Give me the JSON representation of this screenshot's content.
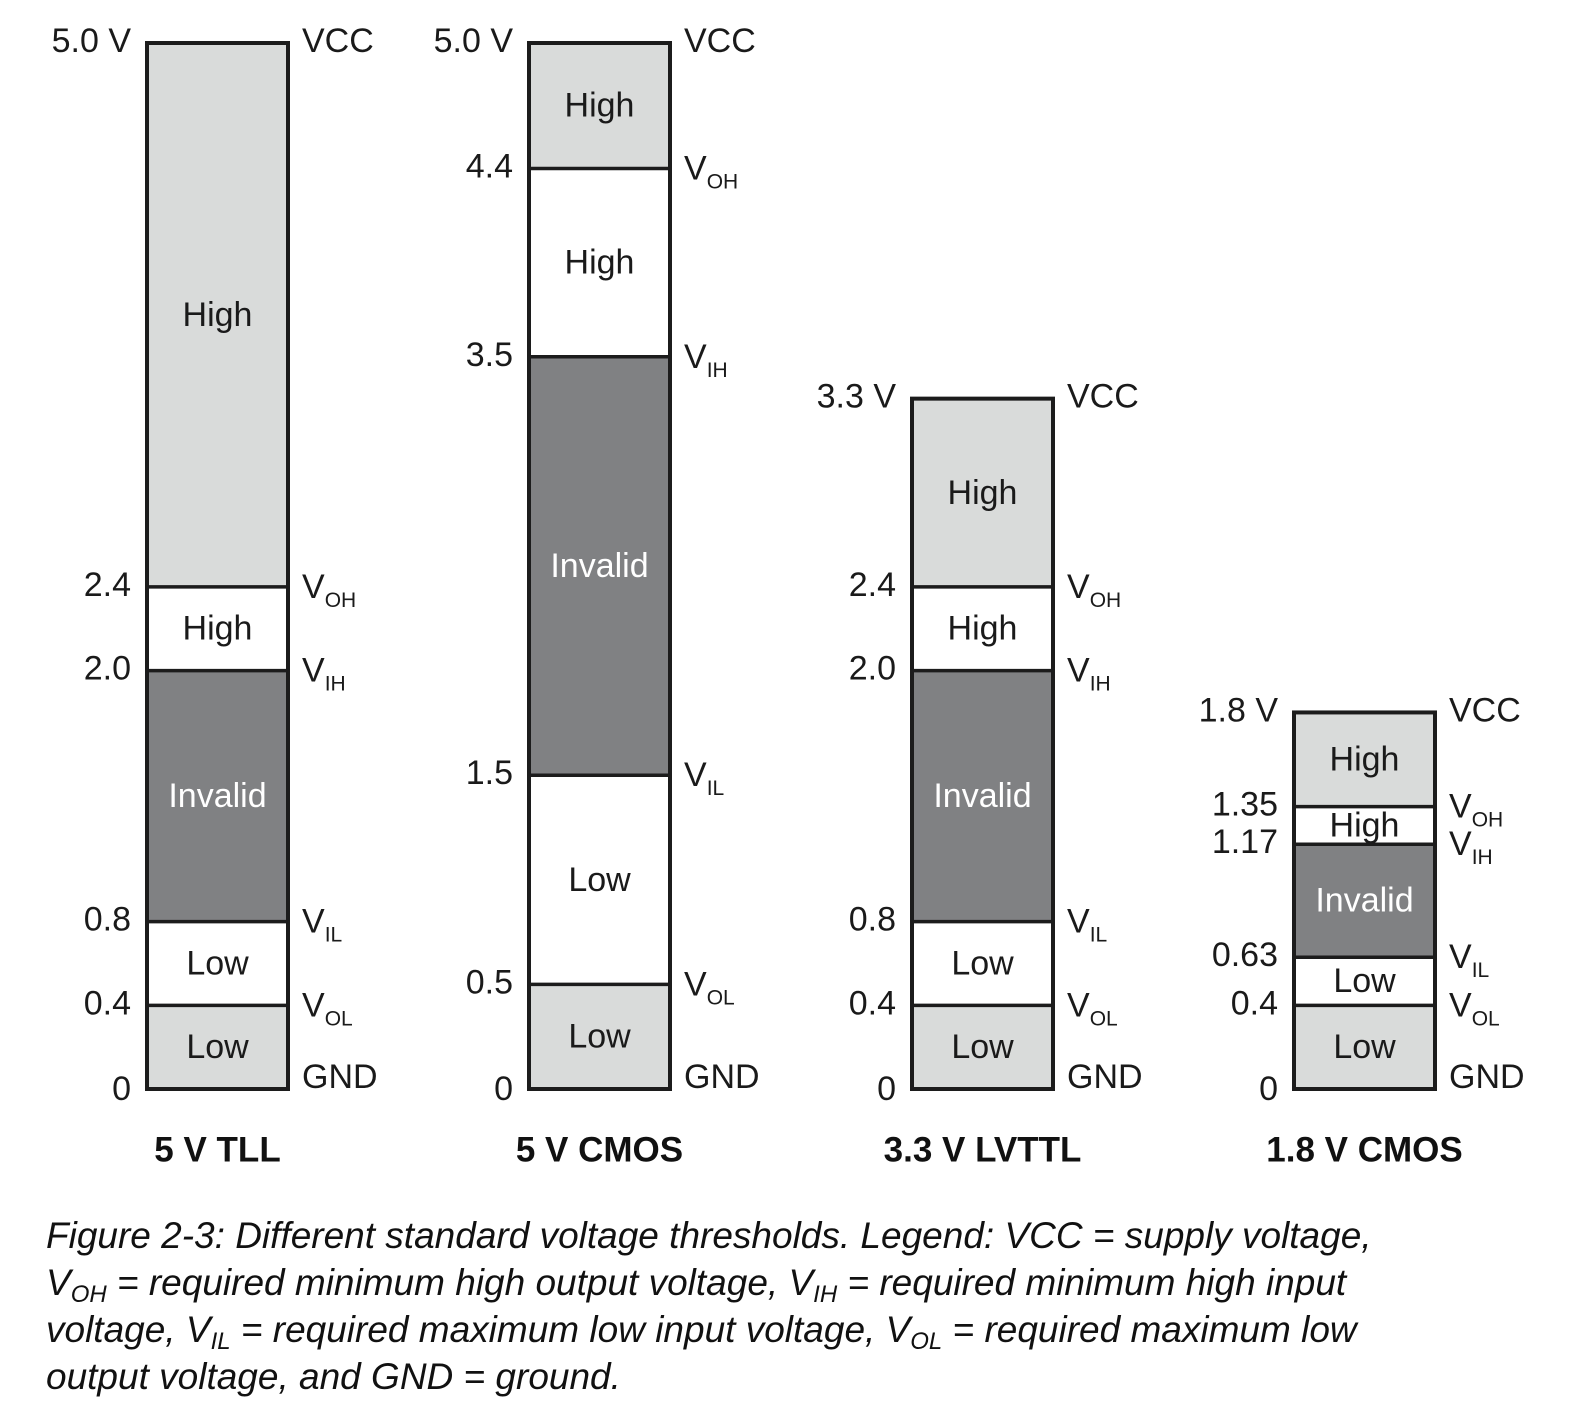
{
  "colors": {
    "high_output": "#d9dbda",
    "input_band": "#ffffff",
    "invalid": "#808183",
    "low_output": "#d9dbda",
    "stroke": "#1c1c1c"
  },
  "standards": [
    {
      "name": "5 V TLL",
      "top_label": "5.0 V",
      "thresholds": [
        {
          "value": 2.4,
          "label": "2.4",
          "sym": "V",
          "sub": "OH"
        },
        {
          "value": 2.0,
          "label": "2.0",
          "sym": "V",
          "sub": "IH"
        },
        {
          "value": 0.8,
          "label": "0.8",
          "sym": "V",
          "sub": "IL"
        },
        {
          "value": 0.4,
          "label": "0.4",
          "sym": "V",
          "sub": "OL"
        }
      ],
      "segments": [
        {
          "from": 2.4,
          "to": 5.0,
          "label": "High",
          "kind": "high_output"
        },
        {
          "from": 2.0,
          "to": 2.4,
          "label": "High",
          "kind": "input_band"
        },
        {
          "from": 0.8,
          "to": 2.0,
          "label": "Invalid",
          "kind": "invalid"
        },
        {
          "from": 0.4,
          "to": 0.8,
          "label": "Low",
          "kind": "input_band"
        },
        {
          "from": 0.0,
          "to": 0.4,
          "label": "Low",
          "kind": "low_output"
        }
      ]
    },
    {
      "name": "5 V CMOS",
      "top_label": "5.0 V",
      "thresholds": [
        {
          "value": 4.4,
          "label": "4.4",
          "sym": "V",
          "sub": "OH"
        },
        {
          "value": 3.5,
          "label": "3.5",
          "sym": "V",
          "sub": "IH"
        },
        {
          "value": 1.5,
          "label": "1.5",
          "sym": "V",
          "sub": "IL"
        },
        {
          "value": 0.5,
          "label": "0.5",
          "sym": "V",
          "sub": "OL"
        }
      ],
      "segments": [
        {
          "from": 4.4,
          "to": 5.0,
          "label": "High",
          "kind": "high_output"
        },
        {
          "from": 3.5,
          "to": 4.4,
          "label": "High",
          "kind": "input_band"
        },
        {
          "from": 1.5,
          "to": 3.5,
          "label": "Invalid",
          "kind": "invalid"
        },
        {
          "from": 0.5,
          "to": 1.5,
          "label": "Low",
          "kind": "input_band"
        },
        {
          "from": 0.0,
          "to": 0.5,
          "label": "Low",
          "kind": "low_output"
        }
      ]
    },
    {
      "name": "3.3 V LVTTL",
      "top_label": "3.3 V",
      "thresholds": [
        {
          "value": 2.4,
          "label": "2.4",
          "sym": "V",
          "sub": "OH"
        },
        {
          "value": 2.0,
          "label": "2.0",
          "sym": "V",
          "sub": "IH"
        },
        {
          "value": 0.8,
          "label": "0.8",
          "sym": "V",
          "sub": "IL"
        },
        {
          "value": 0.4,
          "label": "0.4",
          "sym": "V",
          "sub": "OL"
        }
      ],
      "segments": [
        {
          "from": 2.4,
          "to": 3.3,
          "label": "High",
          "kind": "high_output"
        },
        {
          "from": 2.0,
          "to": 2.4,
          "label": "High",
          "kind": "input_band"
        },
        {
          "from": 0.8,
          "to": 2.0,
          "label": "Invalid",
          "kind": "invalid"
        },
        {
          "from": 0.4,
          "to": 0.8,
          "label": "Low",
          "kind": "input_band"
        },
        {
          "from": 0.0,
          "to": 0.4,
          "label": "Low",
          "kind": "low_output"
        }
      ]
    },
    {
      "name": "1.8 V CMOS",
      "top_label": "1.8 V",
      "thresholds": [
        {
          "value": 1.35,
          "label": "1.35",
          "sym": "V",
          "sub": "OH"
        },
        {
          "value": 1.17,
          "label": "1.17",
          "sym": "V",
          "sub": "IH"
        },
        {
          "value": 0.63,
          "label": "0.63",
          "sym": "V",
          "sub": "IL"
        },
        {
          "value": 0.4,
          "label": "0.4",
          "sym": "V",
          "sub": "OL"
        }
      ],
      "segments": [
        {
          "from": 1.35,
          "to": 1.8,
          "label": "High",
          "kind": "high_output"
        },
        {
          "from": 1.17,
          "to": 1.35,
          "label": "High",
          "kind": "input_band"
        },
        {
          "from": 0.63,
          "to": 1.17,
          "label": "Invalid",
          "kind": "invalid"
        },
        {
          "from": 0.4,
          "to": 0.63,
          "label": "Low",
          "kind": "input_band"
        },
        {
          "from": 0.0,
          "to": 0.4,
          "label": "Low",
          "kind": "low_output"
        }
      ]
    }
  ],
  "vcc_label": "VCC",
  "gnd_label": "GND",
  "zero_label": "0",
  "caption": {
    "part1": "Figure 2-3: Different standard voltage thresholds. Legend: VCC = supply voltage,",
    "v_oh_sym": "V",
    "v_oh_sub": "OH",
    "part2": " = required minimum high output voltage, ",
    "v_ih_sym": "V",
    "v_ih_sub": "IH",
    "part3": " = required minimum high input",
    "part4": "voltage, ",
    "v_il_sym": "V",
    "v_il_sub": "IL",
    "part5": " = required maximum low input voltage, ",
    "v_ol_sym": "V",
    "v_ol_sub": "OL",
    "part6": " = required maximum low",
    "part7": "output voltage, and GND = ground."
  }
}
